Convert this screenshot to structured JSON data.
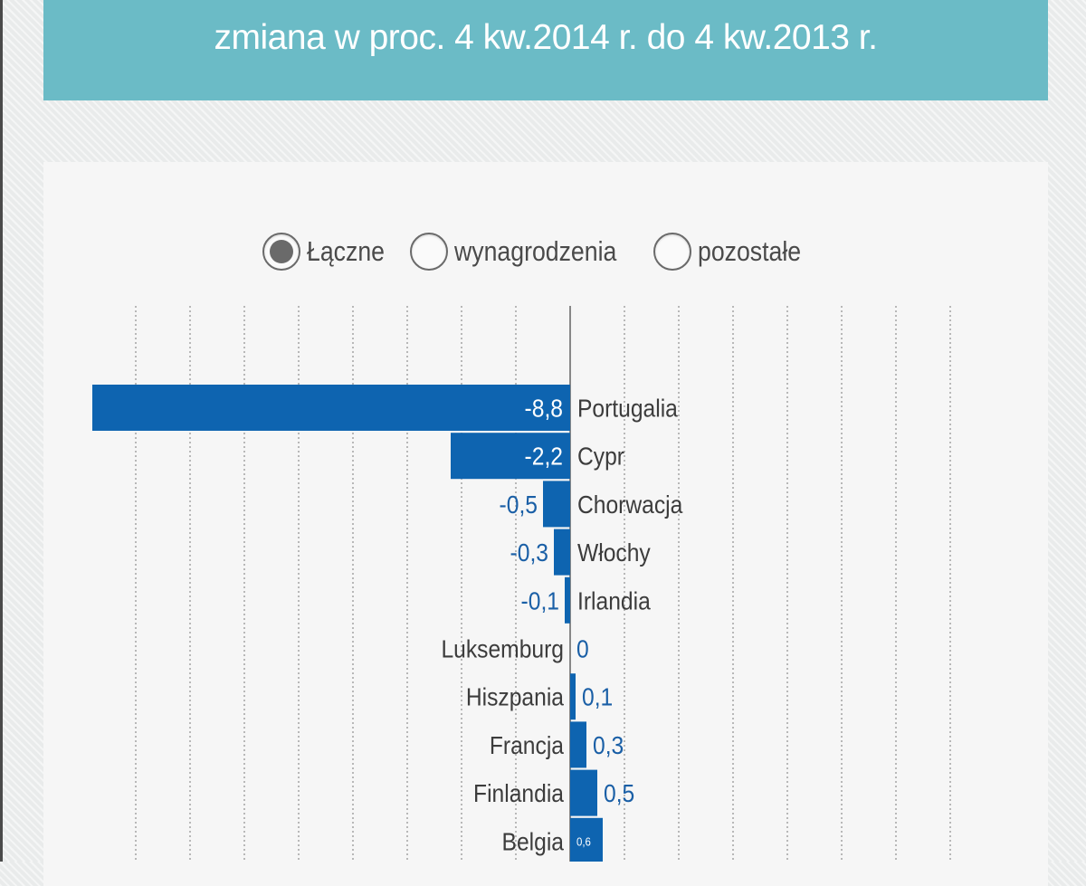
{
  "header": {
    "title": "zmiana w proc. 4 kw.2014 r. do 4 kw.2013 r."
  },
  "radio_group": {
    "options": [
      {
        "label": "Łączne",
        "selected": true
      },
      {
        "label": "wynagrodzenia",
        "selected": false
      },
      {
        "label": "pozostałe",
        "selected": false
      }
    ]
  },
  "colors": {
    "header_bg": "#6bbbc6",
    "bar": "#0e64b0",
    "value_text_outside": "#1a5fa6",
    "value_text_inside": "#ffffff",
    "category_text": "#3c3c3c"
  },
  "chart_data": {
    "type": "bar",
    "orientation": "horizontal",
    "title": "zmiana w proc. 4 kw.2014 r. do 4 kw.2013 r.",
    "xlabel": "",
    "ylabel": "",
    "grid": true,
    "categories": [
      "Portugalia",
      "Cypr",
      "Chorwacja",
      "Włochy",
      "Irlandia",
      "Luksemburg",
      "Hiszpania",
      "Francja",
      "Finlandia",
      "Belgia"
    ],
    "values": [
      -8.8,
      -2.2,
      -0.5,
      -0.3,
      -0.1,
      0,
      0.1,
      0.3,
      0.5,
      0.6
    ],
    "value_labels": [
      "-8,8",
      "-2,2",
      "-0,5",
      "-0,3",
      "-0,1",
      "0",
      "0,1",
      "0,3",
      "0,5",
      "0,6"
    ],
    "xlim": [
      -8.8,
      7.0
    ]
  }
}
